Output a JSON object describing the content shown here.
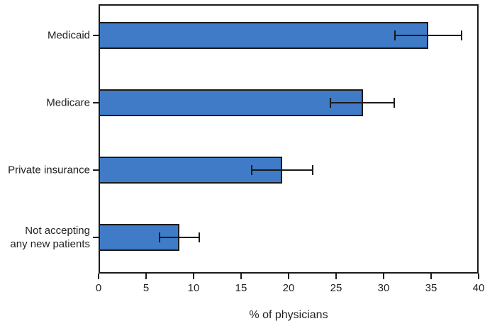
{
  "chart_data": {
    "type": "bar",
    "orientation": "horizontal",
    "title": "",
    "categories": [
      "Medicaid",
      "Medicare",
      "Private insurance",
      "Not accepting any new patients"
    ],
    "category_display": [
      "Medicaid",
      "Medicare",
      "Private insurance",
      "Not accepting\nany new patients"
    ],
    "values": [
      34.7,
      27.8,
      19.3,
      8.5
    ],
    "error_bars": {
      "low": [
        31.2,
        24.4,
        16.1,
        6.4
      ],
      "high": [
        38.2,
        31.1,
        22.5,
        10.6
      ]
    },
    "xlabel": "% of physicians",
    "xlim": [
      0,
      40
    ],
    "xticks": [
      0,
      5,
      10,
      15,
      20,
      25,
      30,
      35,
      40
    ],
    "grid": false,
    "legend": false,
    "colors": {
      "bar_fill": "#3F7BC6",
      "bar_border": "#1A1A1A",
      "error_bar": "#1A1A1A",
      "axis": "#1A1A1A",
      "text": "#231F20",
      "background": "#FFFFFF"
    }
  }
}
